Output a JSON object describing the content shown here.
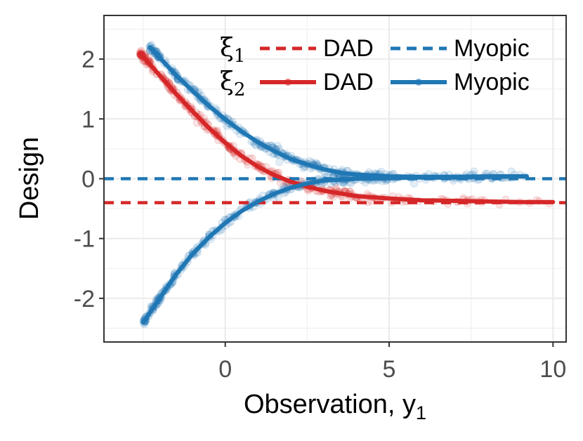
{
  "chart_data": {
    "type": "scatter",
    "xlabel": "Observation, y",
    "xlabel_sub": "1",
    "ylabel": "Design",
    "xlim": [
      -3.7,
      10.4
    ],
    "ylim": [
      -2.73,
      2.73
    ],
    "x_ticks": [
      0,
      5,
      10
    ],
    "x_tick_labels": [
      "0",
      "5",
      "10"
    ],
    "y_ticks": [
      -2,
      -1,
      0,
      1,
      2
    ],
    "y_tick_labels": [
      "-2",
      "-1",
      "0",
      "1",
      "2"
    ],
    "grid": true,
    "legend_position": "top-right",
    "legend": {
      "rows": [
        {
          "symbol": "ξ",
          "sub": "1",
          "items": [
            {
              "label": "DAD",
              "color": "#d62728",
              "style": "dashed"
            },
            {
              "label": "Myopic",
              "color": "#1f77b4",
              "style": "dashed"
            }
          ]
        },
        {
          "symbol": "ξ",
          "sub": "2",
          "items": [
            {
              "label": "DAD",
              "color": "#d62728",
              "style": "solid"
            },
            {
              "label": "Myopic",
              "color": "#1f77b4",
              "style": "solid"
            }
          ]
        }
      ]
    },
    "series": [
      {
        "name": "ξ1 DAD",
        "color": "#d62728",
        "style": "dashed",
        "kind": "hline",
        "y": -0.4
      },
      {
        "name": "ξ1 Myopic",
        "color": "#1f77b4",
        "style": "dashed",
        "kind": "hline",
        "y": 0.0
      },
      {
        "name": "ξ2 DAD",
        "color": "#d62728",
        "style": "solid",
        "kind": "curve",
        "x": [
          -2.6,
          -2.0,
          -1.5,
          -1.0,
          -0.5,
          0.0,
          0.5,
          1.0,
          1.5,
          2.0,
          2.5,
          3.0,
          4.0,
          5.0,
          6.0,
          7.0,
          8.0,
          9.0,
          10.0
        ],
        "y": [
          2.1,
          1.73,
          1.42,
          1.13,
          0.85,
          0.6,
          0.38,
          0.2,
          0.06,
          -0.05,
          -0.13,
          -0.2,
          -0.29,
          -0.33,
          -0.36,
          -0.37,
          -0.38,
          -0.39,
          -0.39
        ]
      },
      {
        "name": "ξ2 Myopic (upper)",
        "color": "#1f77b4",
        "style": "solid",
        "kind": "curve",
        "x": [
          -2.3,
          -1.5,
          -1.0,
          -0.5,
          0.0,
          0.5,
          1.0,
          1.5,
          2.0,
          2.5,
          3.0,
          3.5,
          4.0,
          5.0,
          6.0,
          7.0,
          8.0,
          9.2
        ],
        "y": [
          2.2,
          1.73,
          1.47,
          1.22,
          0.99,
          0.79,
          0.61,
          0.46,
          0.33,
          0.24,
          0.16,
          0.1,
          0.07,
          0.04,
          0.03,
          0.03,
          0.04,
          0.04
        ]
      },
      {
        "name": "ξ2 Myopic (lower)",
        "color": "#1f77b4",
        "style": "solid",
        "kind": "curve",
        "x": [
          -2.5,
          -2.0,
          -1.5,
          -1.0,
          -0.5,
          0.0,
          0.5,
          1.0,
          1.5,
          2.0,
          2.5,
          3.0,
          4.0,
          5.0,
          6.0,
          7.0,
          8.0,
          9.2
        ],
        "y": [
          -2.4,
          -2.0,
          -1.6,
          -1.26,
          -0.98,
          -0.74,
          -0.54,
          -0.38,
          -0.25,
          -0.15,
          -0.08,
          -0.03,
          0.0,
          0.01,
          0.02,
          0.02,
          0.03,
          0.04
        ]
      }
    ]
  }
}
